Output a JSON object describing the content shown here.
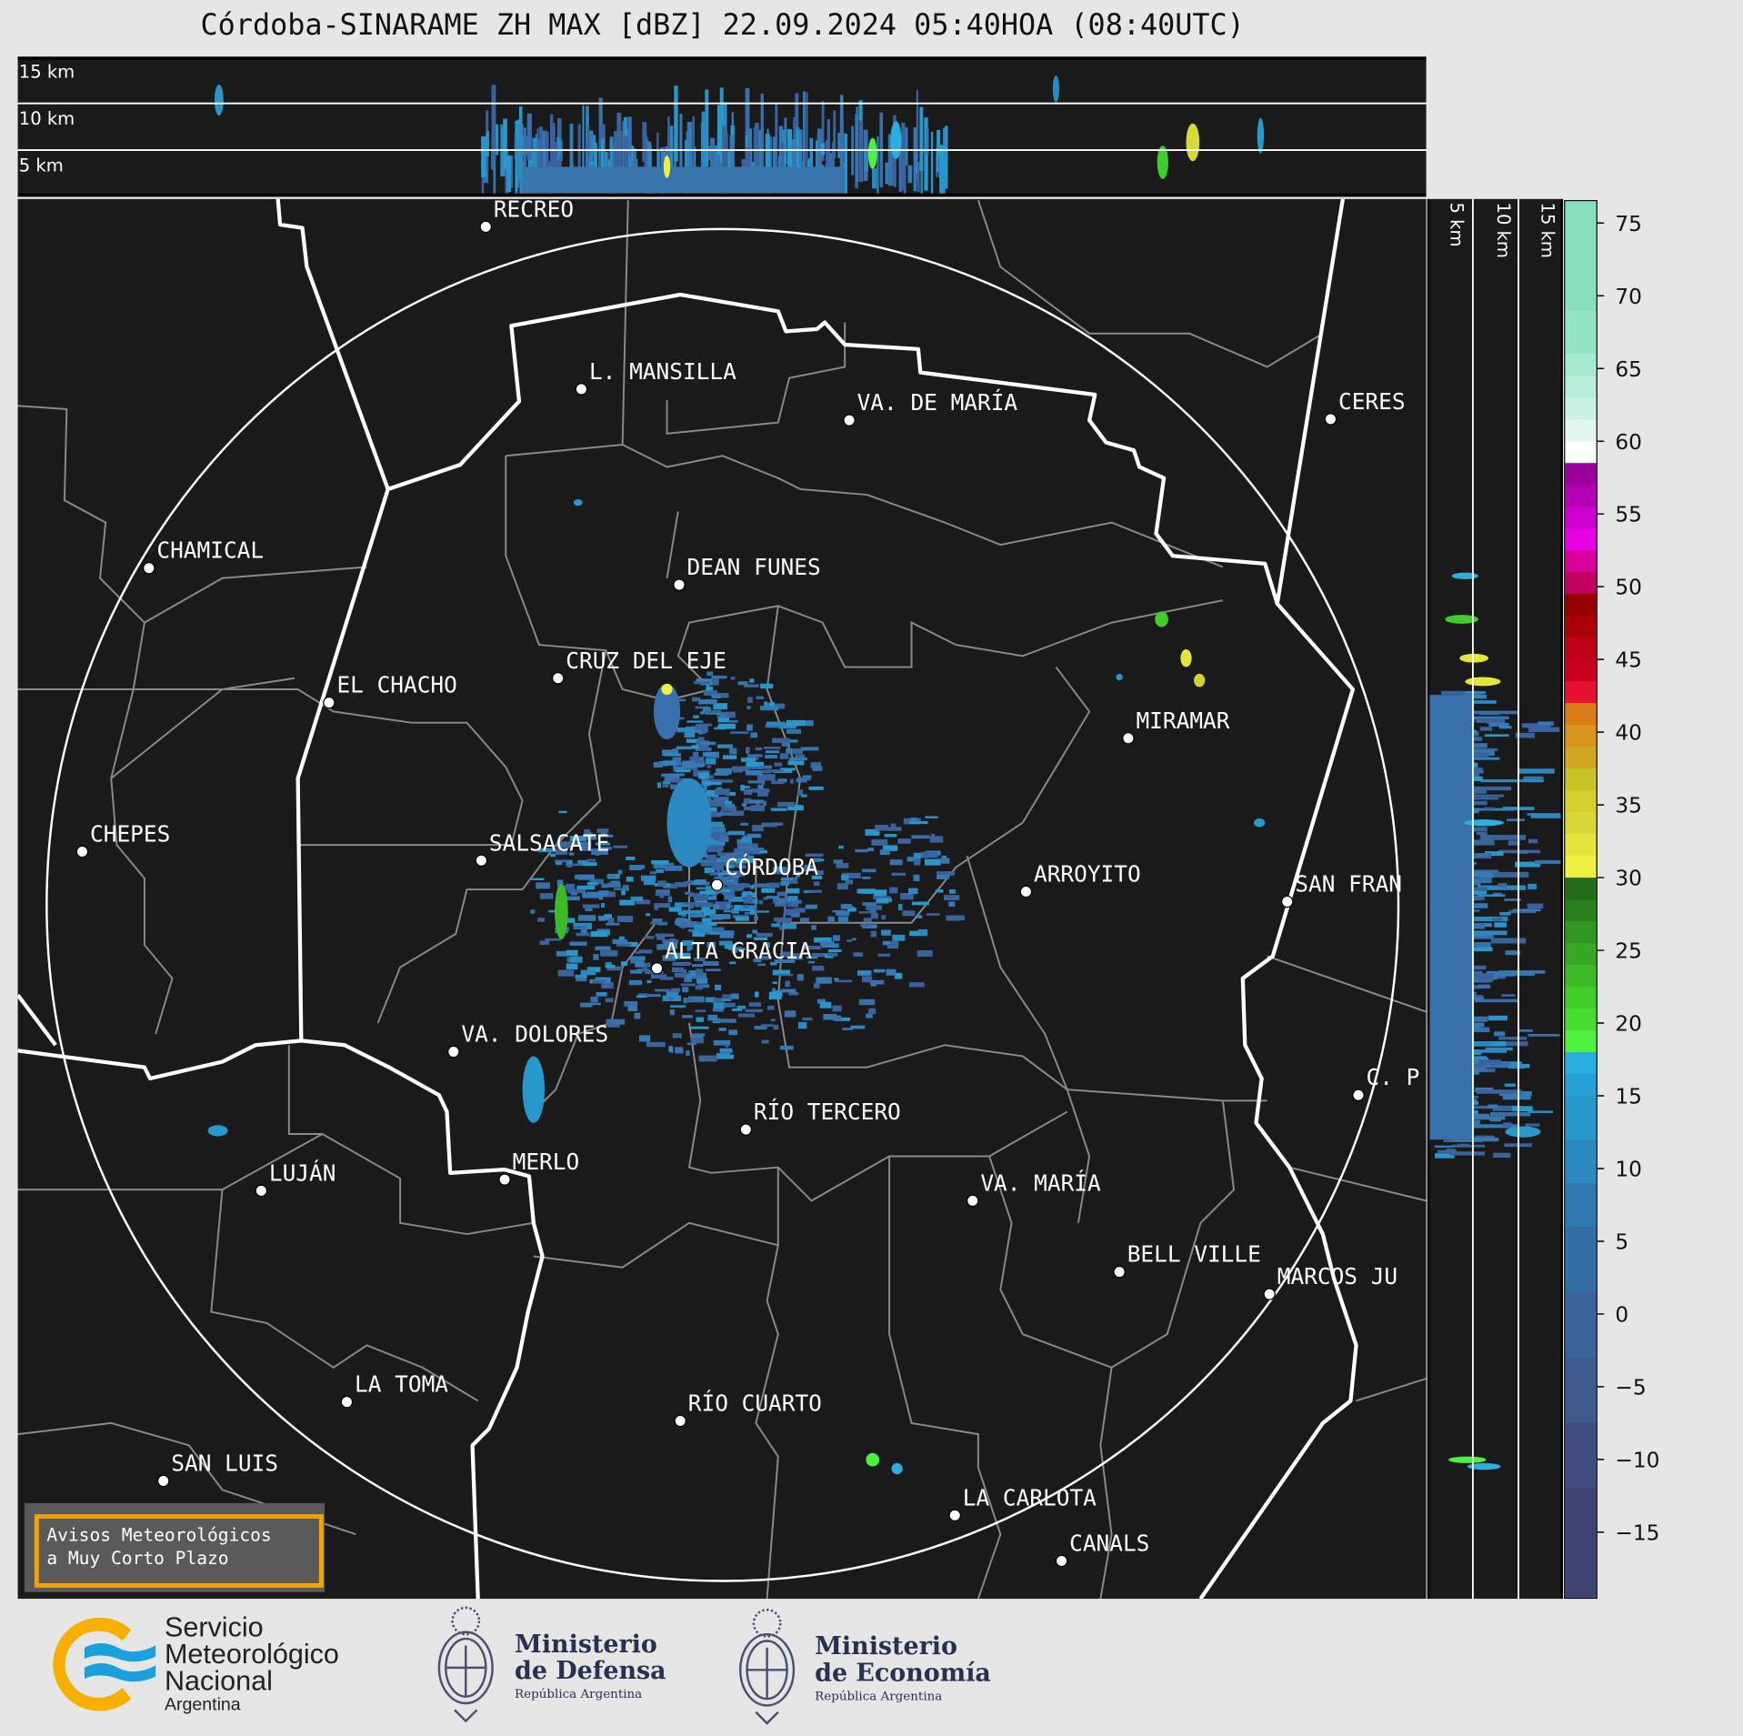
{
  "title": "Córdoba-SINARAME ZH MAX [dBZ] 22.09.2024 05:40HOA (08:40UTC)",
  "top_panel": {
    "labels": [
      "15 km",
      "10 km",
      "5 km"
    ]
  },
  "side_panel": {
    "labels": [
      "5 km",
      "10 km",
      "15 km"
    ]
  },
  "cities": [
    "RECREO",
    "L. MANSILLA",
    "VA. DE MARÍA",
    "CERES",
    "CHAMICAL",
    "DEAN FUNES",
    "CRUZ DEL EJE",
    "EL CHACHO",
    "MIRAMAR",
    "CHEPES",
    "SALSACATE",
    "CÓRDOBA",
    "ARROYITO",
    "SAN FRAN",
    "ALTA GRACIA",
    "VA. DOLORES",
    "C. P",
    "RÍO TERCERO",
    "LUJÁN",
    "MERLO",
    "VA. MARÍA",
    "BELL VILLE",
    "MARCOS JU",
    "LA TOMA",
    "RÍO CUARTO",
    "SAN LUIS",
    "LA CARLOTA",
    "CANALS"
  ],
  "colorbar": {
    "unit": "dBZ",
    "range": [
      -19.5,
      76.5
    ],
    "ticks": [
      "75",
      "70",
      "65",
      "60",
      "55",
      "50",
      "45",
      "40",
      "35",
      "30",
      "25",
      "20",
      "15",
      "10",
      "5",
      "0",
      "−5",
      "−10",
      "−15"
    ],
    "tick_values": [
      75,
      70,
      65,
      60,
      55,
      50,
      45,
      40,
      35,
      30,
      25,
      20,
      15,
      10,
      5,
      0,
      -5,
      -10,
      -15
    ],
    "bands": [
      [
        69,
        76.5,
        "#88dfbd"
      ],
      [
        66,
        69,
        "#96e4c6"
      ],
      [
        64.5,
        66,
        "#a6ead0"
      ],
      [
        63,
        64.5,
        "#b8eed9"
      ],
      [
        61.5,
        63,
        "#cbf3e4"
      ],
      [
        60,
        61.5,
        "#e0f7ef"
      ],
      [
        58.5,
        60,
        "#ffffff"
      ],
      [
        57,
        58.5,
        "#9a009e"
      ],
      [
        55.5,
        57,
        "#b400b4"
      ],
      [
        54,
        55.5,
        "#cc00cc"
      ],
      [
        52.5,
        54,
        "#e600e6"
      ],
      [
        51,
        52.5,
        "#d8009a"
      ],
      [
        49.5,
        51,
        "#c0005c"
      ],
      [
        48,
        49.5,
        "#960000"
      ],
      [
        46.5,
        48,
        "#aa0008"
      ],
      [
        45,
        46.5,
        "#c00018"
      ],
      [
        43.5,
        45,
        "#c80020"
      ],
      [
        42,
        43.5,
        "#e81030"
      ],
      [
        40.5,
        42,
        "#dc7c18"
      ],
      [
        39,
        40.5,
        "#d8941c"
      ],
      [
        37.5,
        39,
        "#d0a820"
      ],
      [
        36,
        37.5,
        "#c8c428"
      ],
      [
        34.5,
        36,
        "#d4d030"
      ],
      [
        33,
        34.5,
        "#d8d838"
      ],
      [
        31.5,
        33,
        "#e4e43c"
      ],
      [
        30,
        31.5,
        "#f0f040"
      ],
      [
        28.5,
        30,
        "#246c1c"
      ],
      [
        27,
        28.5,
        "#2a7e1e"
      ],
      [
        25.5,
        27,
        "#309822"
      ],
      [
        24,
        25.5,
        "#36a824"
      ],
      [
        22.5,
        24,
        "#3cba28"
      ],
      [
        21,
        22.5,
        "#42cc2c"
      ],
      [
        19.5,
        21,
        "#48dc30"
      ],
      [
        18,
        19.5,
        "#50f040"
      ],
      [
        16.5,
        18,
        "#2aaee0"
      ],
      [
        15,
        16.5,
        "#28a0d8"
      ],
      [
        12,
        15,
        "#2898cc"
      ],
      [
        9,
        12,
        "#2c88c0"
      ],
      [
        6,
        9,
        "#3078b0"
      ],
      [
        1.5,
        6,
        "#346ca4"
      ],
      [
        -3,
        1.5,
        "#38649a"
      ],
      [
        -7.5,
        -3,
        "#3c5a8c"
      ],
      [
        -12,
        -7.5,
        "#3e4c80"
      ],
      [
        -19.5,
        -12,
        "#3e4270"
      ]
    ]
  },
  "warning_box": {
    "line1": "Avisos Meteorológicos",
    "line2": "a Muy Corto Plazo",
    "border_color": "#f5a300"
  },
  "logos": {
    "smn": {
      "line1": "Servicio",
      "line2": "Meteorológico",
      "line3": "Nacional",
      "line4": "Argentina"
    },
    "defensa": {
      "line1": "Ministerio",
      "line2": "de Defensa",
      "line3": "República Argentina"
    },
    "economia": {
      "line1": "Ministerio",
      "line2": "de Economía",
      "line3": "República Argentina"
    }
  }
}
